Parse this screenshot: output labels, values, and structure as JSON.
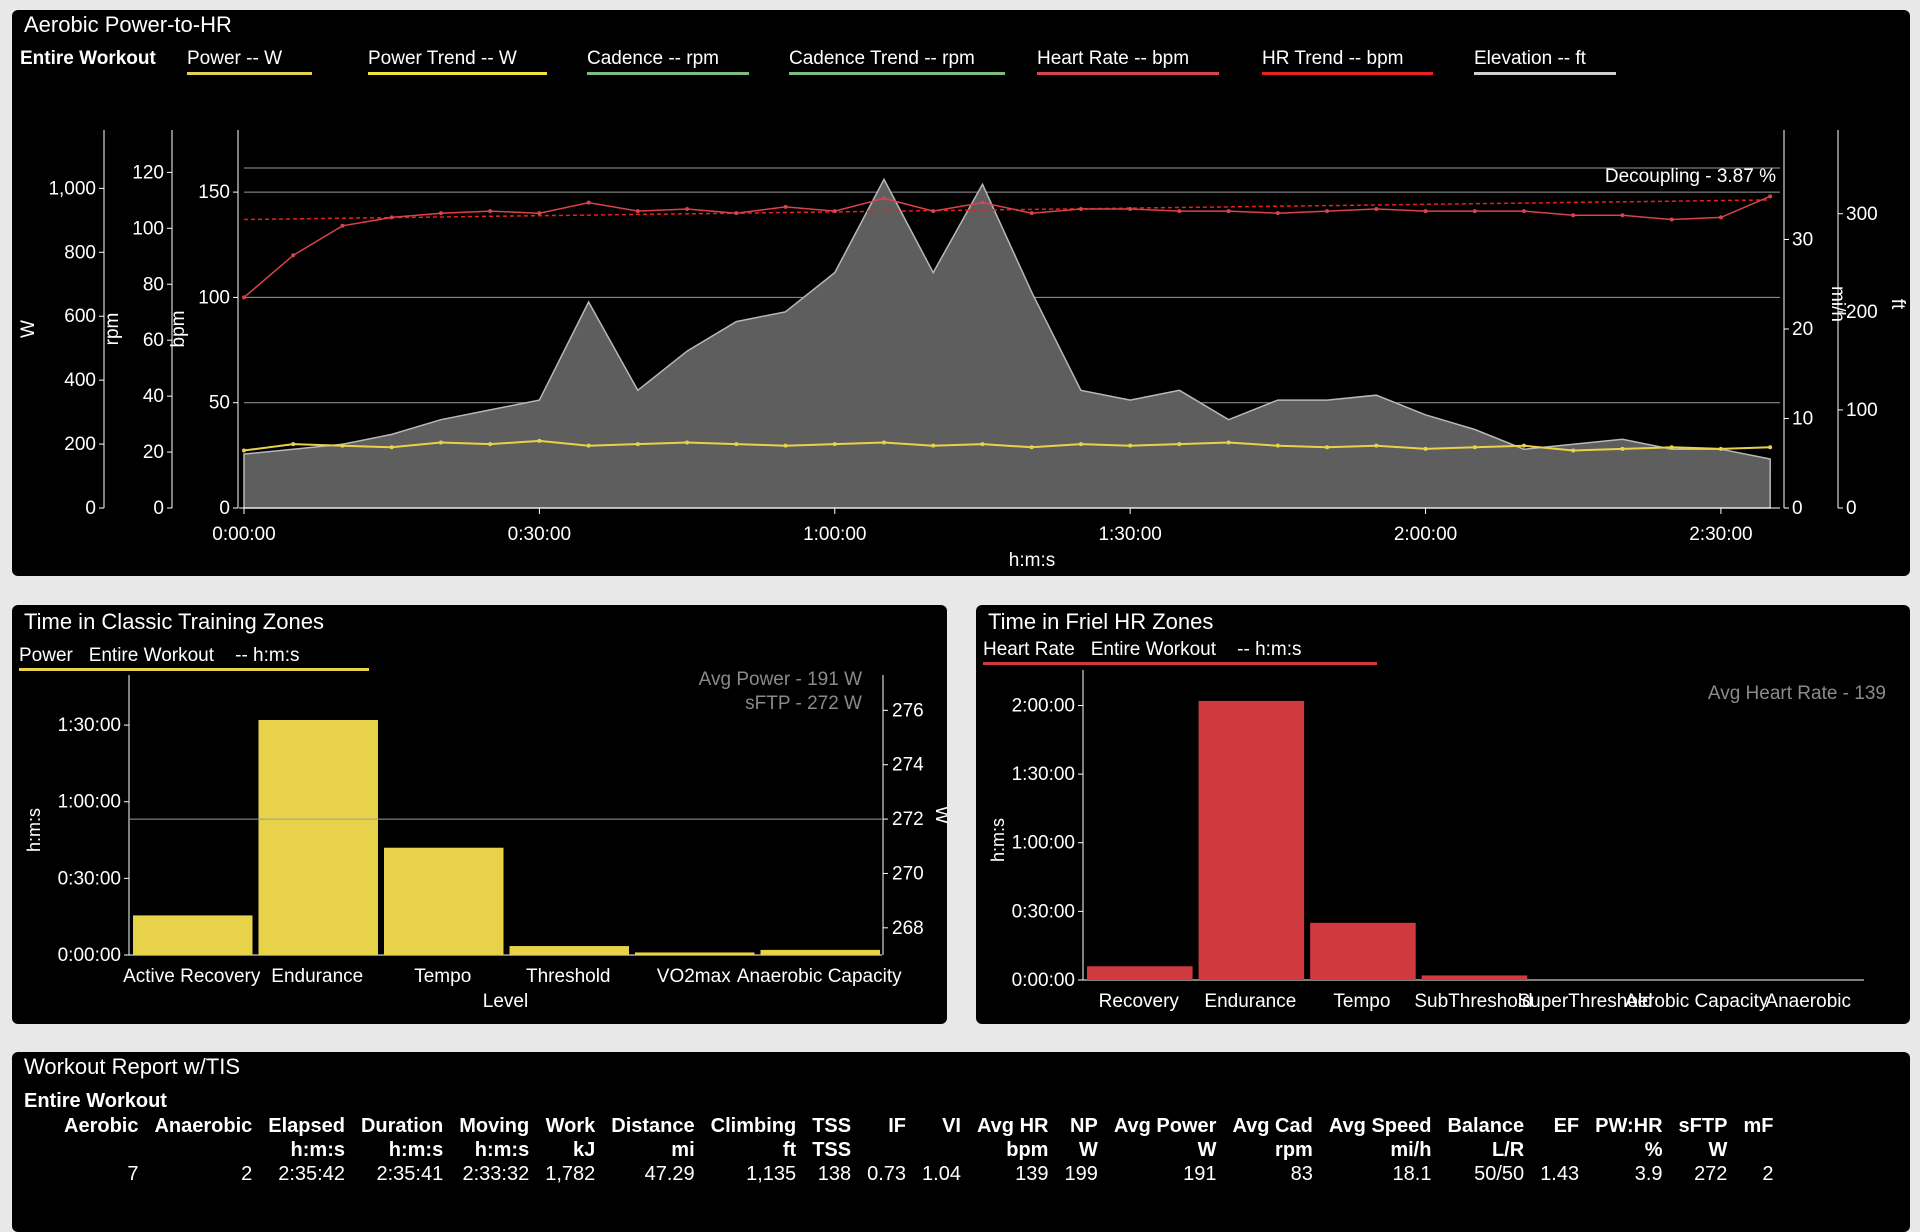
{
  "main_chart": {
    "title": "Aerobic Power-to-HR",
    "legend": [
      {
        "label": "Entire Workout",
        "color": "",
        "bold": true
      },
      {
        "label": "Power  -- W",
        "color": "#e8d24a"
      },
      {
        "label": "Power Trend  -- W",
        "color": "#f2e23a"
      },
      {
        "label": "Cadence  -- rpm",
        "color": "#7dbd7d"
      },
      {
        "label": "Cadence Trend  -- rpm",
        "color": "#7dbd7d"
      },
      {
        "label": "Heart Rate  -- bpm",
        "color": "#d9434a"
      },
      {
        "label": "HR Trend  -- bpm",
        "color": "#e8201e"
      },
      {
        "label": "Elevation  -- ft",
        "color": "#cfcfcf"
      }
    ],
    "decoupling_label": "Decoupling - 3.87 %",
    "xlabel": "h:m:s",
    "axes": {
      "w": {
        "label": "W",
        "ticks": [
          "0",
          "200",
          "400",
          "600",
          "800",
          "1,000"
        ]
      },
      "rpm": {
        "label": "rpm",
        "ticks": [
          "0",
          "20",
          "40",
          "60",
          "80",
          "100",
          "120"
        ]
      },
      "bpm": {
        "label": "bpm",
        "ticks": [
          "0",
          "50",
          "100",
          "150"
        ]
      },
      "mph": {
        "label": "mi/h",
        "ticks": [
          "0",
          "10",
          "20",
          "30"
        ]
      },
      "ft": {
        "label": "ft",
        "ticks": [
          "0",
          "100",
          "200",
          "300"
        ]
      }
    },
    "x_ticks": [
      "0:00:00",
      "0:30:00",
      "1:00:00",
      "1:30:00",
      "2:00:00",
      "2:30:00"
    ]
  },
  "chart_data": [
    {
      "type": "line",
      "title": "Aerobic Power-to-HR",
      "xlabel": "h:m:s",
      "x_minutes": [
        0,
        5,
        10,
        15,
        20,
        25,
        30,
        35,
        40,
        45,
        50,
        55,
        60,
        65,
        70,
        75,
        80,
        85,
        90,
        95,
        100,
        105,
        110,
        115,
        120,
        125,
        130,
        135,
        140,
        145,
        150,
        155
      ],
      "series": [
        {
          "name": "Heart Rate",
          "unit": "bpm",
          "values": [
            100,
            120,
            134,
            138,
            140,
            141,
            140,
            145,
            141,
            142,
            140,
            143,
            141,
            147,
            141,
            145,
            140,
            142,
            142,
            141,
            141,
            140,
            141,
            142,
            141,
            141,
            141,
            139,
            139,
            137,
            138,
            148
          ]
        },
        {
          "name": "HR Trend",
          "unit": "bpm",
          "values": [
            137,
            137.3,
            137.6,
            137.9,
            138.2,
            138.5,
            138.8,
            139.1,
            139.4,
            139.7,
            140,
            140.3,
            140.6,
            140.9,
            141.2,
            141.5,
            141.8,
            142.1,
            142.4,
            142.7,
            143,
            143.3,
            143.6,
            143.9,
            144.2,
            144.5,
            144.8,
            145.1,
            145.4,
            145.7,
            146,
            146.3
          ]
        },
        {
          "name": "Power",
          "unit": "W",
          "values": [
            180,
            200,
            195,
            190,
            205,
            200,
            210,
            195,
            200,
            205,
            200,
            195,
            200,
            205,
            195,
            200,
            190,
            200,
            195,
            200,
            205,
            195,
            190,
            195,
            185,
            190,
            195,
            180,
            185,
            190,
            185,
            190
          ]
        },
        {
          "name": "Elevation",
          "unit": "ft",
          "values": [
            55,
            60,
            65,
            75,
            90,
            100,
            110,
            210,
            120,
            160,
            190,
            200,
            240,
            335,
            240,
            330,
            220,
            120,
            110,
            120,
            90,
            110,
            110,
            115,
            95,
            80,
            60,
            65,
            70,
            60,
            60,
            50
          ]
        }
      ]
    },
    {
      "type": "bar",
      "title": "Time in Classic Training Zones",
      "xlabel": "Level",
      "ylabel": "h:m:s",
      "categories": [
        "Active Recovery",
        "Endurance",
        "Tempo",
        "Threshold",
        "VO2max",
        "Anaerobic Capacity"
      ],
      "values": [
        15.5,
        92,
        42,
        3.5,
        1,
        2
      ],
      "value_unit": "minutes",
      "y_ticks": [
        "0:00:00",
        "0:30:00",
        "1:00:00",
        "1:30:00"
      ],
      "right_axis": {
        "label": "W",
        "ticks": [
          "268",
          "270",
          "272",
          "274",
          "276"
        ]
      },
      "annotations": [
        "Avg Power - 191 W",
        "sFTP - 272 W"
      ]
    },
    {
      "type": "bar",
      "title": "Time in Friel HR Zones",
      "ylabel": "h:m:s",
      "categories": [
        "Recovery",
        "Endurance",
        "Tempo",
        "SubThreshold",
        "SuperThreshold",
        "Aerobic Capacity",
        "Anaerobic"
      ],
      "values": [
        6,
        122,
        25,
        2,
        0,
        0,
        0
      ],
      "value_unit": "minutes",
      "y_ticks": [
        "0:00:00",
        "0:30:00",
        "1:00:00",
        "1:30:00",
        "2:00:00"
      ],
      "annotations": [
        "Avg Heart Rate - 139"
      ]
    }
  ],
  "zones_power": {
    "title": "Time in Classic Training Zones",
    "legend_label": "Power   Entire Workout    -- h:m:s",
    "avg_label": "Avg Power - 191 W",
    "sftp_label": "sFTP - 272 W",
    "color": "#e8d24a"
  },
  "zones_hr": {
    "title": "Time in Friel HR Zones",
    "legend_label": "Heart Rate   Entire Workout    -- h:m:s",
    "avg_label": "Avg Heart Rate - 139",
    "color": "#d0393e"
  },
  "report": {
    "title": "Workout Report w/TIS",
    "section": "Entire Workout",
    "headers": [
      "Aerobic",
      "Anaerobic",
      "Elapsed",
      "Duration",
      "Moving",
      "Work",
      "Distance",
      "Climbing",
      "TSS",
      "IF",
      "VI",
      "Avg HR",
      "NP",
      "Avg Power",
      "Avg Cad",
      "Avg Speed",
      "Balance",
      "EF",
      "PW:HR",
      "sFTP",
      "mF"
    ],
    "units": [
      "",
      "",
      "h:m:s",
      "h:m:s",
      "h:m:s",
      "kJ",
      "mi",
      "ft",
      "TSS",
      "",
      "",
      "bpm",
      "W",
      "W",
      "rpm",
      "mi/h",
      "L/R",
      "",
      "%",
      "W",
      ""
    ],
    "values": [
      "7",
      "2",
      "2:35:42",
      "2:35:41",
      "2:33:32",
      "1,782",
      "47.29",
      "1,135",
      "138",
      "0.73",
      "1.04",
      "139",
      "199",
      "191",
      "83",
      "18.1",
      "50/50",
      "1.43",
      "3.9",
      "272",
      "2"
    ]
  }
}
